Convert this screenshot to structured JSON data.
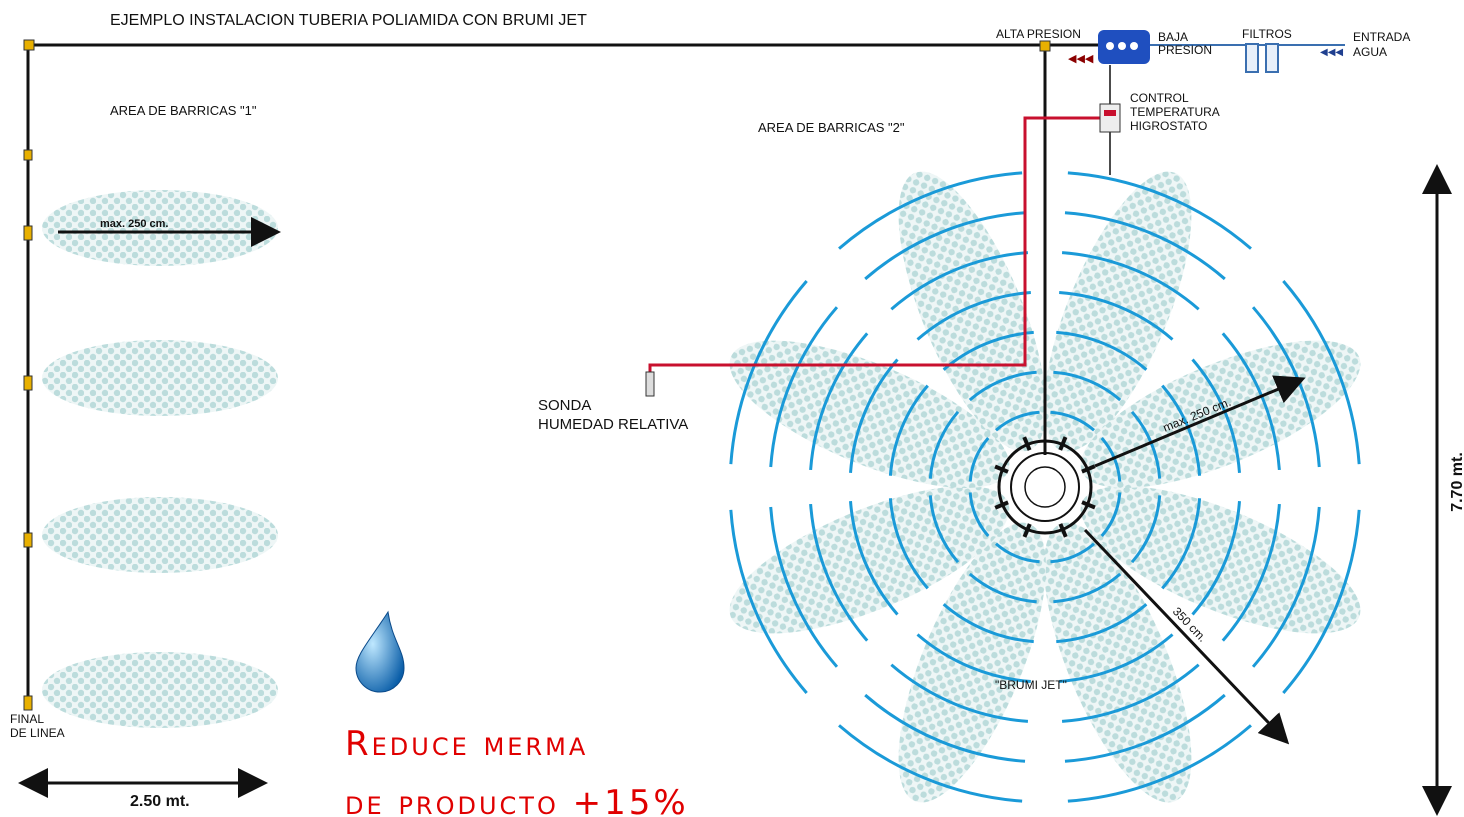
{
  "header": {
    "title": "EJEMPLO INSTALACION TUBERIA POLIAMIDA CON BRUMI JET"
  },
  "labels": {
    "alta_presion": "ALTA PRESION",
    "baja_presion": [
      "BAJA",
      "PRESION"
    ],
    "filtros": "FILTROS",
    "entrada_agua": [
      "ENTRADA",
      "AGUA"
    ],
    "control": [
      "CONTROL",
      "TEMPERATURA",
      "HIGROSTATO"
    ],
    "area_1": "AREA DE BARRICAS \"1\"",
    "area_2": "AREA DE BARRICAS \"2\"",
    "max_1": "max. 250 cm.",
    "sonda": [
      "SONDA",
      "HUMEDAD RELATIVA"
    ],
    "max_2": "max. 250 cm.",
    "dist_350": "350 cm.",
    "brumi_jet": "\"BRUMI JET\"",
    "final_linea": [
      "FINAL",
      "DE LINEA"
    ],
    "width": "2.50 mt.",
    "height": "7.70 mt."
  },
  "promo": [
    "Reduce merma",
    "de producto +15%"
  ]
}
